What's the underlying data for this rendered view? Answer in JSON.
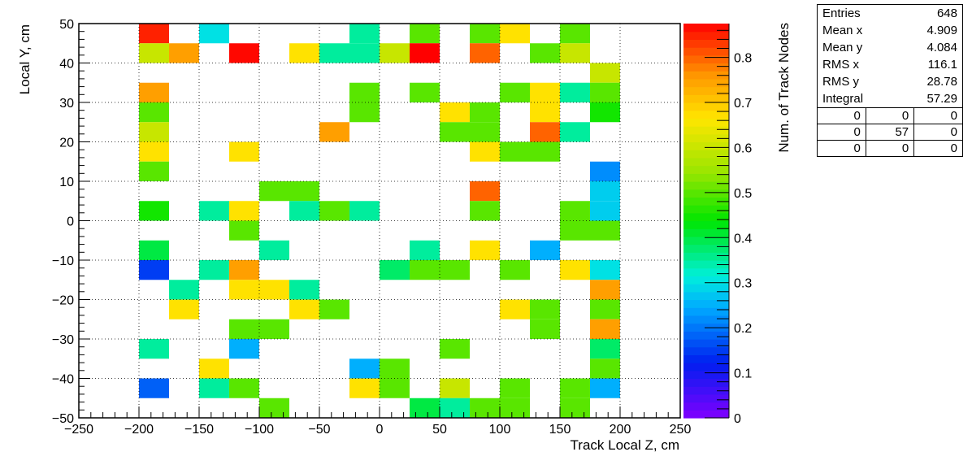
{
  "chart_data": {
    "type": "heatmap",
    "title": "",
    "xlabel": "Track Local Z, cm",
    "ylabel": "Local Y, cm",
    "zlabel": "Num. of Track Nodes",
    "xlim": [
      -250,
      250
    ],
    "ylim": [
      -50,
      50
    ],
    "zlim": [
      0,
      0.875
    ],
    "x_ticks": [
      -250,
      -200,
      -150,
      -100,
      -50,
      0,
      50,
      100,
      150,
      200,
      250
    ],
    "y_ticks": [
      -50,
      -40,
      -30,
      -20,
      -10,
      0,
      10,
      20,
      30,
      40,
      50
    ],
    "z_ticks": [
      0,
      0.1,
      0.2,
      0.3,
      0.4,
      0.5,
      0.6,
      0.7,
      0.8
    ],
    "bin_width_x": 25,
    "bin_width_y": 5,
    "grid": true,
    "colormap": "rainbow (violet-blue-cyan-green-yellow-red)",
    "cells": [
      {
        "x": -200,
        "y": 45,
        "z": 0.85
      },
      {
        "x": -150,
        "y": 45,
        "z": 0.3
      },
      {
        "x": -25,
        "y": 45,
        "z": 0.35
      },
      {
        "x": 25,
        "y": 45,
        "z": 0.5
      },
      {
        "x": 75,
        "y": 45,
        "z": 0.5
      },
      {
        "x": 100,
        "y": 45,
        "z": 0.67
      },
      {
        "x": 150,
        "y": 45,
        "z": 0.5
      },
      {
        "x": -200,
        "y": 40,
        "z": 0.6
      },
      {
        "x": -175,
        "y": 40,
        "z": 0.75
      },
      {
        "x": -125,
        "y": 40,
        "z": 0.87
      },
      {
        "x": -75,
        "y": 40,
        "z": 0.67
      },
      {
        "x": -50,
        "y": 40,
        "z": 0.35
      },
      {
        "x": -25,
        "y": 40,
        "z": 0.35
      },
      {
        "x": 0,
        "y": 40,
        "z": 0.6
      },
      {
        "x": 25,
        "y": 40,
        "z": 0.88
      },
      {
        "x": 75,
        "y": 40,
        "z": 0.8
      },
      {
        "x": 125,
        "y": 40,
        "z": 0.5
      },
      {
        "x": 150,
        "y": 40,
        "z": 0.6
      },
      {
        "x": 175,
        "y": 35,
        "z": 0.6
      },
      {
        "x": -200,
        "y": 30,
        "z": 0.75
      },
      {
        "x": -25,
        "y": 30,
        "z": 0.5
      },
      {
        "x": 25,
        "y": 30,
        "z": 0.5
      },
      {
        "x": 100,
        "y": 30,
        "z": 0.5
      },
      {
        "x": 125,
        "y": 30,
        "z": 0.67
      },
      {
        "x": 150,
        "y": 30,
        "z": 0.35
      },
      {
        "x": 175,
        "y": 30,
        "z": 0.5
      },
      {
        "x": -200,
        "y": 25,
        "z": 0.5
      },
      {
        "x": -25,
        "y": 25,
        "z": 0.5
      },
      {
        "x": 50,
        "y": 25,
        "z": 0.67
      },
      {
        "x": 75,
        "y": 25,
        "z": 0.5
      },
      {
        "x": 125,
        "y": 25,
        "z": 0.67
      },
      {
        "x": 175,
        "y": 25,
        "z": 0.45
      },
      {
        "x": -200,
        "y": 20,
        "z": 0.6
      },
      {
        "x": -50,
        "y": 20,
        "z": 0.75
      },
      {
        "x": 50,
        "y": 20,
        "z": 0.5
      },
      {
        "x": 75,
        "y": 20,
        "z": 0.5
      },
      {
        "x": 125,
        "y": 20,
        "z": 0.8
      },
      {
        "x": 150,
        "y": 20,
        "z": 0.35
      },
      {
        "x": -200,
        "y": 15,
        "z": 0.67
      },
      {
        "x": -125,
        "y": 15,
        "z": 0.67
      },
      {
        "x": 75,
        "y": 15,
        "z": 0.67
      },
      {
        "x": 100,
        "y": 15,
        "z": 0.5
      },
      {
        "x": 125,
        "y": 15,
        "z": 0.5
      },
      {
        "x": -200,
        "y": 10,
        "z": 0.5
      },
      {
        "x": 175,
        "y": 10,
        "z": 0.22
      },
      {
        "x": -100,
        "y": 5,
        "z": 0.5
      },
      {
        "x": -75,
        "y": 5,
        "z": 0.5
      },
      {
        "x": 75,
        "y": 5,
        "z": 0.8
      },
      {
        "x": 175,
        "y": 5,
        "z": 0.28
      },
      {
        "x": -200,
        "y": 0,
        "z": 0.45
      },
      {
        "x": -150,
        "y": 0,
        "z": 0.35
      },
      {
        "x": -125,
        "y": 0,
        "z": 0.67
      },
      {
        "x": -75,
        "y": 0,
        "z": 0.35
      },
      {
        "x": -50,
        "y": 0,
        "z": 0.5
      },
      {
        "x": -25,
        "y": 0,
        "z": 0.35
      },
      {
        "x": 75,
        "y": 0,
        "z": 0.5
      },
      {
        "x": 150,
        "y": 0,
        "z": 0.5
      },
      {
        "x": 175,
        "y": 0,
        "z": 0.28
      },
      {
        "x": -125,
        "y": -5,
        "z": 0.5
      },
      {
        "x": 150,
        "y": -5,
        "z": 0.5
      },
      {
        "x": 175,
        "y": -5,
        "z": 0.5
      },
      {
        "x": -200,
        "y": -10,
        "z": 0.4
      },
      {
        "x": -100,
        "y": -10,
        "z": 0.35
      },
      {
        "x": 25,
        "y": -10,
        "z": 0.35
      },
      {
        "x": 75,
        "y": -10,
        "z": 0.67
      },
      {
        "x": 125,
        "y": -10,
        "z": 0.25
      },
      {
        "x": -200,
        "y": -15,
        "z": 0.15
      },
      {
        "x": -150,
        "y": -15,
        "z": 0.35
      },
      {
        "x": -125,
        "y": -15,
        "z": 0.75
      },
      {
        "x": 0,
        "y": -15,
        "z": 0.38
      },
      {
        "x": 25,
        "y": -15,
        "z": 0.5
      },
      {
        "x": 50,
        "y": -15,
        "z": 0.5
      },
      {
        "x": 100,
        "y": -15,
        "z": 0.5
      },
      {
        "x": 150,
        "y": -15,
        "z": 0.67
      },
      {
        "x": 175,
        "y": -15,
        "z": 0.3
      },
      {
        "x": -175,
        "y": -20,
        "z": 0.35
      },
      {
        "x": -125,
        "y": -20,
        "z": 0.67
      },
      {
        "x": -100,
        "y": -20,
        "z": 0.67
      },
      {
        "x": -75,
        "y": -20,
        "z": 0.35
      },
      {
        "x": 175,
        "y": -20,
        "z": 0.75
      },
      {
        "x": -175,
        "y": -25,
        "z": 0.67
      },
      {
        "x": -75,
        "y": -25,
        "z": 0.67
      },
      {
        "x": -50,
        "y": -25,
        "z": 0.5
      },
      {
        "x": 100,
        "y": -25,
        "z": 0.67
      },
      {
        "x": 125,
        "y": -25,
        "z": 0.5
      },
      {
        "x": 175,
        "y": -25,
        "z": 0.5
      },
      {
        "x": -125,
        "y": -30,
        "z": 0.5
      },
      {
        "x": -100,
        "y": -30,
        "z": 0.5
      },
      {
        "x": 125,
        "y": -30,
        "z": 0.5
      },
      {
        "x": 175,
        "y": -30,
        "z": 0.75
      },
      {
        "x": -200,
        "y": -35,
        "z": 0.35
      },
      {
        "x": -125,
        "y": -35,
        "z": 0.25
      },
      {
        "x": 50,
        "y": -35,
        "z": 0.5
      },
      {
        "x": 175,
        "y": -35,
        "z": 0.38
      },
      {
        "x": -150,
        "y": -40,
        "z": 0.67
      },
      {
        "x": -25,
        "y": -40,
        "z": 0.25
      },
      {
        "x": 0,
        "y": -40,
        "z": 0.5
      },
      {
        "x": 175,
        "y": -40,
        "z": 0.5
      },
      {
        "x": -200,
        "y": -45,
        "z": 0.18
      },
      {
        "x": -150,
        "y": -45,
        "z": 0.35
      },
      {
        "x": -125,
        "y": -45,
        "z": 0.5
      },
      {
        "x": -25,
        "y": -45,
        "z": 0.67
      },
      {
        "x": 0,
        "y": -45,
        "z": 0.5
      },
      {
        "x": 50,
        "y": -45,
        "z": 0.6
      },
      {
        "x": 100,
        "y": -45,
        "z": 0.5
      },
      {
        "x": 150,
        "y": -45,
        "z": 0.5
      },
      {
        "x": 175,
        "y": -45,
        "z": 0.25
      },
      {
        "x": -100,
        "y": -50,
        "z": 0.5
      },
      {
        "x": 25,
        "y": -50,
        "z": 0.4
      },
      {
        "x": 50,
        "y": -50,
        "z": 0.35
      },
      {
        "x": 75,
        "y": -50,
        "z": 0.5
      },
      {
        "x": 100,
        "y": -50,
        "z": 0.5
      },
      {
        "x": 150,
        "y": -50,
        "z": 0.5
      }
    ]
  },
  "stats": {
    "rows": [
      {
        "label": "Entries",
        "value": "648"
      },
      {
        "label": "Mean x",
        "value": "4.909"
      },
      {
        "label": "Mean y",
        "value": "4.084"
      },
      {
        "label": "RMS x",
        "value": "116.1"
      },
      {
        "label": "RMS y",
        "value": "28.78"
      },
      {
        "label": "Integral",
        "value": "57.29"
      }
    ],
    "grid": [
      [
        "0",
        "0",
        "0"
      ],
      [
        "0",
        "57",
        "0"
      ],
      [
        "0",
        "0",
        "0"
      ]
    ]
  }
}
